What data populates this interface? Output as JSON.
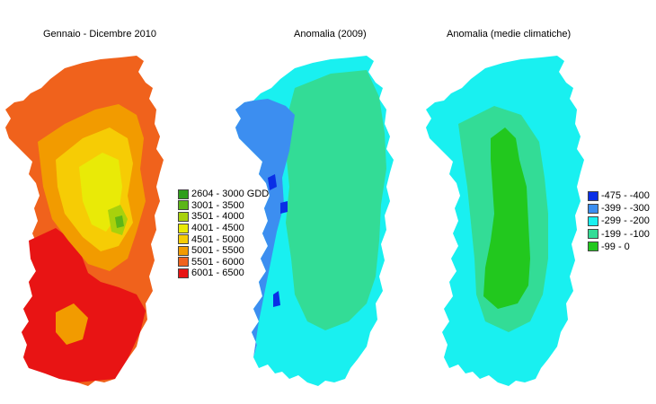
{
  "titles": {
    "map1": "Gennaio - Dicembre 2010",
    "map2": "Anomalia (2009)",
    "map3": "Anomalia (medie climatiche)"
  },
  "legend_gdd": [
    {
      "label": "2604 - 3000 GDD",
      "color": "#2e9e1a"
    },
    {
      "label": "3001 - 3500",
      "color": "#5cb617"
    },
    {
      "label": "3501 - 4000",
      "color": "#a8d10c"
    },
    {
      "label": "4001 - 4500",
      "color": "#e9ea07"
    },
    {
      "label": "4501 - 5000",
      "color": "#f6cc05"
    },
    {
      "label": "5001 - 5500",
      "color": "#f29b00"
    },
    {
      "label": "5501 - 6000",
      "color": "#f0621c"
    },
    {
      "label": "6001 - 6500",
      "color": "#e81414"
    }
  ],
  "legend_anom": [
    {
      "label": "-475 - -400",
      "color": "#0a2fe6"
    },
    {
      "label": "-399 - -300",
      "color": "#3c8ef0"
    },
    {
      "label": "-299 - -200",
      "color": "#19f0f0"
    },
    {
      "label": "-199 - -100",
      "color": "#33dc96"
    },
    {
      "label": "-99 - 0",
      "color": "#22c81e"
    }
  ],
  "map_colors": {
    "gdd_base": "#f0621c",
    "gdd_hot": "#e81414",
    "gdd_mid": "#f29b00",
    "gdd_warm": "#f6cc05",
    "gdd_cool": "#e9ea07",
    "gdd_cooler": "#a8d10c",
    "gdd_cold": "#5cb617",
    "anom2009_base": "#33dc96",
    "anom2009_cyan": "#19f0f0",
    "anom2009_blue": "#3c8ef0",
    "anom2009_darkblue": "#0a2fe6",
    "clim_base": "#19f0f0",
    "clim_mid": "#33dc96",
    "clim_core": "#22c81e"
  }
}
